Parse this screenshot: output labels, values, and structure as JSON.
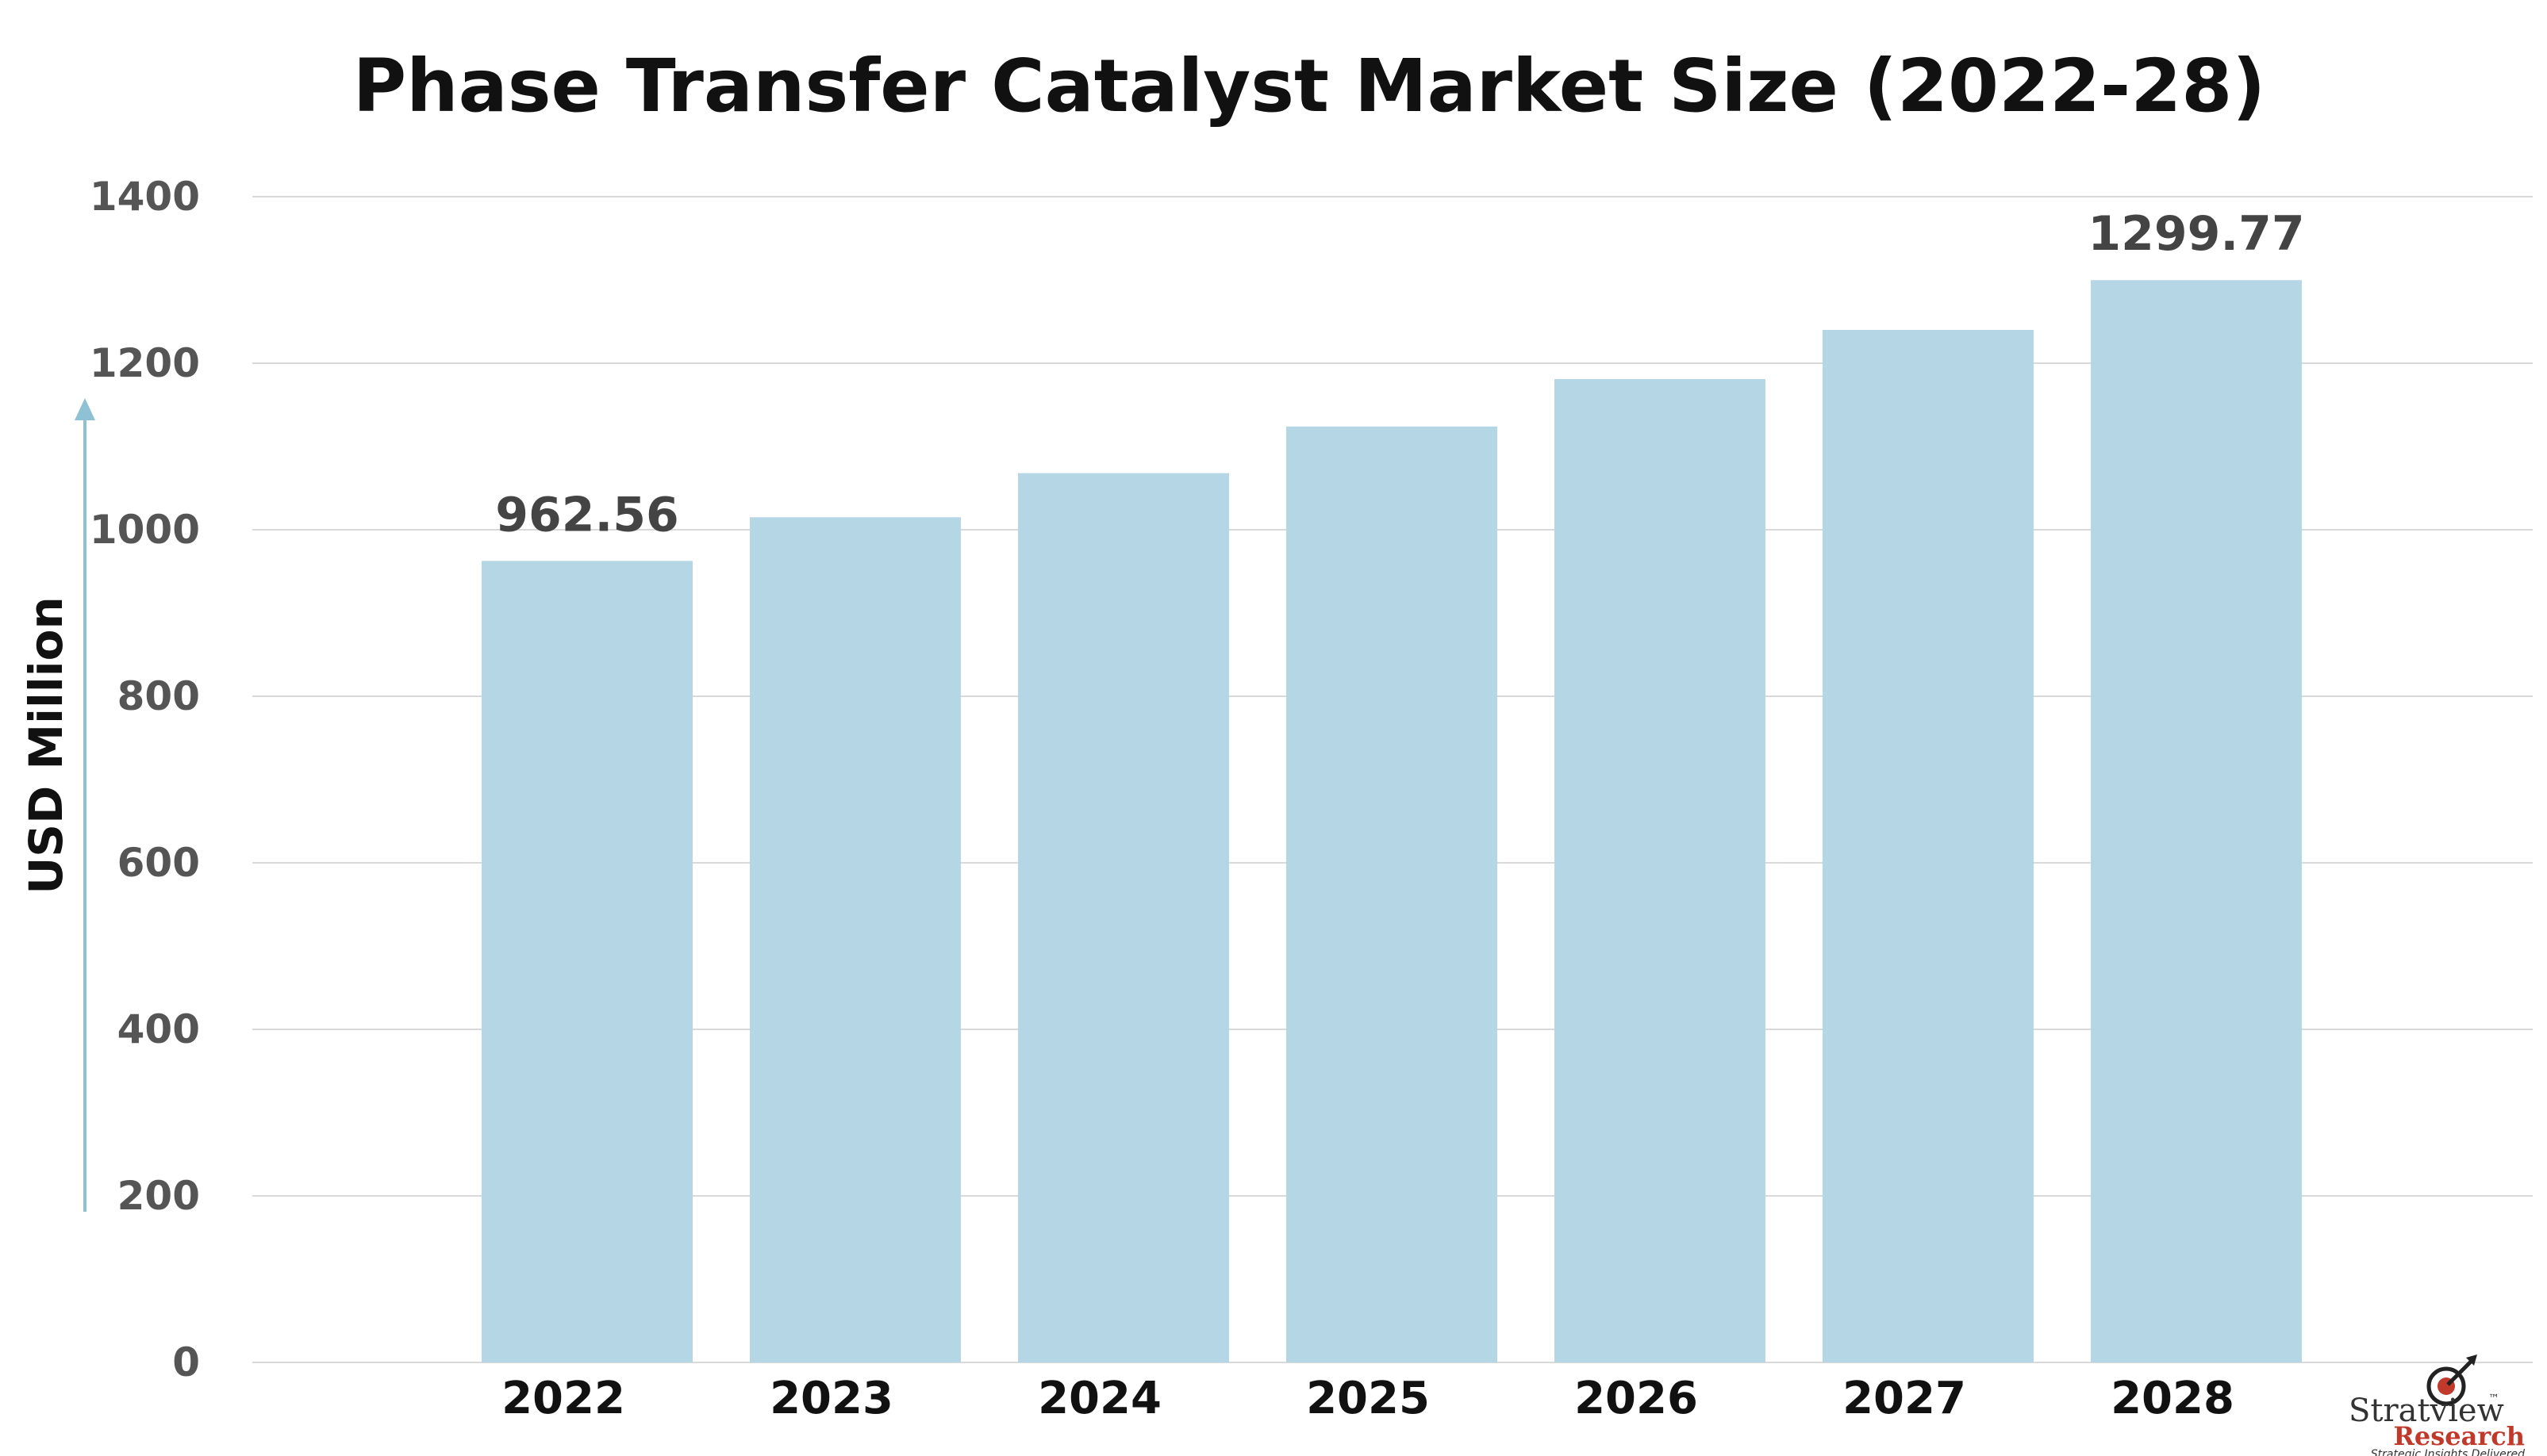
{
  "chart_data": {
    "type": "bar",
    "title": "Phase Transfer Catalyst Market Size (2022-28)",
    "ylabel": "USD Million",
    "xlabel": "",
    "categories": [
      "2022",
      "2023",
      "2024",
      "2025",
      "2026",
      "2027",
      "2028"
    ],
    "values": [
      962.56,
      1015,
      1068,
      1124,
      1181,
      1240,
      1299.77
    ],
    "data_labels": [
      "962.56",
      "",
      "",
      "",
      "",
      "",
      "1299.77"
    ],
    "ylim": [
      0,
      1400
    ],
    "yticks": [
      0,
      200,
      400,
      600,
      800,
      1000,
      1200,
      1400
    ],
    "grid": true,
    "bar_color": "#b5d7e5",
    "grid_color": "#d9d9d9",
    "arrow_color": "#8fc1d4"
  },
  "logo": {
    "brand": "Stratview",
    "tm": "™",
    "research": "Research",
    "tagline": "Strategic Insights Delivered"
  }
}
